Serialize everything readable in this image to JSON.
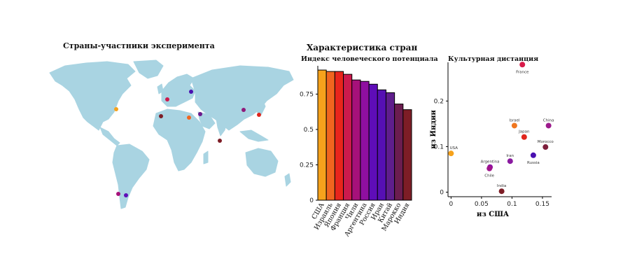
{
  "map_panel": {
    "title": "Страны-участники эксперимента"
  },
  "charts_header": "Характеристика стран",
  "chart_data": [
    {
      "type": "bar",
      "title": "Индекс человеческого потенциала",
      "categories": [
        "США",
        "Израиль",
        "Япония",
        "Франция",
        "Чили",
        "Аргентина",
        "Россия",
        "Иран",
        "Китай",
        "Марокко",
        "Индия"
      ],
      "values": [
        0.92,
        0.91,
        0.91,
        0.89,
        0.85,
        0.84,
        0.82,
        0.78,
        0.76,
        0.68,
        0.64
      ],
      "colors": [
        "#f6a21c",
        "#f0651f",
        "#e8251c",
        "#cc1a4d",
        "#a6117a",
        "#8f0fa0",
        "#5e0db8",
        "#5610b3",
        "#5f1e8c",
        "#6b1d4f",
        "#7d1d26"
      ],
      "yticks": [
        0,
        0.25,
        0.5,
        0.75
      ],
      "ylim": [
        0,
        0.95
      ],
      "xlabel": "",
      "ylabel": ""
    },
    {
      "type": "scatter",
      "title": "Культурная дистанция",
      "xlabel": "из США",
      "ylabel": "из Индии",
      "xticks": [
        0,
        0.05,
        0.1,
        0.15
      ],
      "yticks": [
        0,
        0.1,
        0.2
      ],
      "xlim": [
        -0.005,
        0.165
      ],
      "ylim": [
        -0.01,
        0.285
      ],
      "points": [
        {
          "label": "France",
          "x": 0.117,
          "y": 0.28,
          "color": "#d81b4a",
          "label_pos": "below"
        },
        {
          "label": "Israel",
          "x": 0.104,
          "y": 0.146,
          "color": "#f0761f",
          "label_pos": "above"
        },
        {
          "label": "China",
          "x": 0.16,
          "y": 0.146,
          "color": "#9c1a8c",
          "label_pos": "above"
        },
        {
          "label": "Japan",
          "x": 0.12,
          "y": 0.121,
          "color": "#e0251c",
          "label_pos": "above"
        },
        {
          "label": "Morocco",
          "x": 0.155,
          "y": 0.099,
          "color": "#7d1f3c",
          "label_pos": "above"
        },
        {
          "label": "USA",
          "x": 0.0,
          "y": 0.085,
          "color": "#f6a21c",
          "label_pos": "above"
        },
        {
          "label": "Iran",
          "x": 0.097,
          "y": 0.068,
          "color": "#8a1aa0",
          "label_pos": "above"
        },
        {
          "label": "Russia",
          "x": 0.135,
          "y": 0.081,
          "color": "#4a10b0",
          "label_pos": "below"
        },
        {
          "label": "Argentina",
          "x": 0.064,
          "y": 0.055,
          "color": "#8f12a3",
          "label_pos": "above"
        },
        {
          "label": "Chile",
          "x": 0.063,
          "y": 0.052,
          "color": "#a0148c",
          "label_pos": "below"
        },
        {
          "label": "India",
          "x": 0.083,
          "y": 0.002,
          "color": "#7d1d26",
          "label_pos": "above"
        }
      ]
    }
  ]
}
